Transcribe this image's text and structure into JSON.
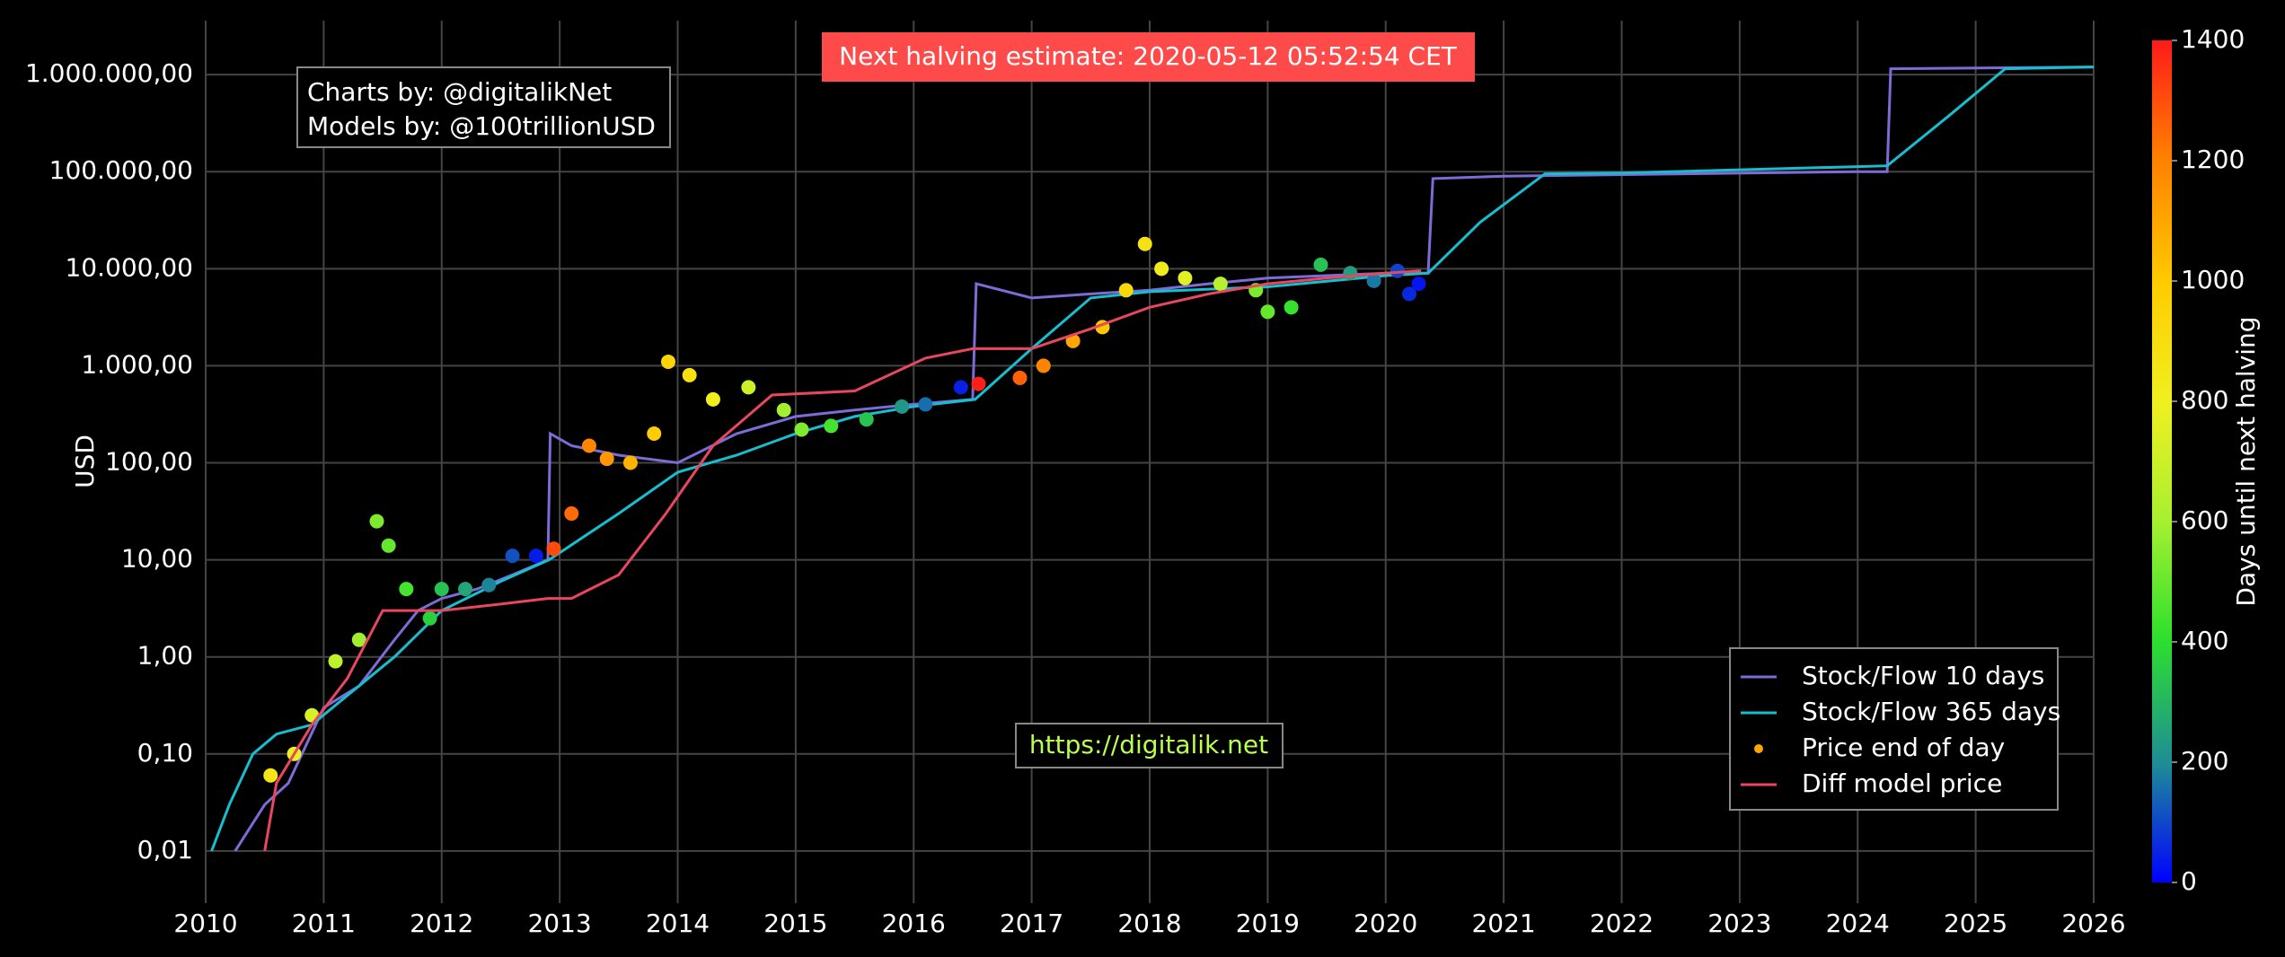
{
  "chart_data": {
    "type": "line",
    "y_label": "USD",
    "log_y": true,
    "grid": true,
    "xlim": [
      2010,
      2026
    ],
    "xticks": [
      2010,
      2011,
      2012,
      2013,
      2014,
      2015,
      2016,
      2017,
      2018,
      2019,
      2020,
      2021,
      2022,
      2023,
      2024,
      2025,
      2026
    ],
    "ylim": [
      0.0029,
      3600000
    ],
    "yticks": [
      {
        "value": 0.01,
        "label": "0,01"
      },
      {
        "value": 0.1,
        "label": "0,10"
      },
      {
        "value": 1,
        "label": "1,00"
      },
      {
        "value": 10,
        "label": "10,00"
      },
      {
        "value": 100,
        "label": "100,00"
      },
      {
        "value": 1000,
        "label": "1.000,00"
      },
      {
        "value": 10000,
        "label": "10.000,00"
      },
      {
        "value": 100000,
        "label": "100.000,00"
      },
      {
        "value": 1000000,
        "label": "1.000.000,00"
      }
    ],
    "legend_position": "bottom right",
    "series": [
      {
        "name": "Stock/Flow 10 days",
        "mode": "line",
        "color": "#7b6cd6",
        "x": [
          2010.25,
          2010.5,
          2010.7,
          2011.0,
          2011.3,
          2011.6,
          2011.8,
          2012.0,
          2012.3,
          2012.6,
          2012.9,
          2012.92,
          2013.1,
          2013.5,
          2014.0,
          2014.5,
          2015.0,
          2015.5,
          2016.0,
          2016.5,
          2016.53,
          2017.0,
          2017.5,
          2018.0,
          2018.5,
          2019.0,
          2019.5,
          2020.0,
          2020.36,
          2020.4,
          2021.0,
          2024.0,
          2024.25,
          2024.28,
          2026
        ],
        "values": [
          0.01,
          0.03,
          0.05,
          0.3,
          0.5,
          1.5,
          3,
          4,
          5,
          7,
          10,
          200,
          150,
          120,
          100,
          200,
          300,
          350,
          400,
          450,
          7000,
          5000,
          5500,
          6000,
          7000,
          8000,
          8500,
          9000,
          9000,
          85000,
          90000,
          100000,
          100000,
          1150000,
          1200000
        ]
      },
      {
        "name": "Stock/Flow 365 days",
        "mode": "line",
        "color": "#17becf",
        "x": [
          2010.05,
          2010.2,
          2010.4,
          2010.6,
          2010.9,
          2011.2,
          2011.6,
          2012.0,
          2012.5,
          2012.91,
          2013.5,
          2014.0,
          2014.5,
          2015.0,
          2015.5,
          2016.0,
          2016.52,
          2017.0,
          2017.5,
          2018.0,
          2019.0,
          2020.0,
          2020.36,
          2020.8,
          2021.35,
          2022.0,
          2024.25,
          2024.8,
          2025.25,
          2026
        ],
        "values": [
          0.01,
          0.03,
          0.1,
          0.16,
          0.2,
          0.4,
          1,
          3,
          6,
          10,
          30,
          80,
          120,
          200,
          300,
          380,
          450,
          1500,
          5000,
          5800,
          6500,
          8500,
          9000,
          30000,
          95000,
          97000,
          115000,
          400000,
          1150000,
          1200000
        ]
      },
      {
        "name": "Price end of day",
        "mode": "markers",
        "legend_color": "#ffa500",
        "x": [
          2010.55,
          2010.75,
          2010.9,
          2011.1,
          2011.3,
          2011.45,
          2011.55,
          2011.7,
          2011.9,
          2012.0,
          2012.2,
          2012.4,
          2012.6,
          2012.8,
          2012.95,
          2013.1,
          2013.25,
          2013.4,
          2013.6,
          2013.8,
          2013.92,
          2014.1,
          2014.3,
          2014.6,
          2014.9,
          2015.05,
          2015.3,
          2015.6,
          2015.9,
          2016.1,
          2016.4,
          2016.55,
          2016.9,
          2017.1,
          2017.35,
          2017.6,
          2017.8,
          2017.96,
          2018.1,
          2018.3,
          2018.6,
          2018.9,
          2019.0,
          2019.2,
          2019.45,
          2019.7,
          2019.9,
          2020.1,
          2020.2,
          2020.28
        ],
        "values": [
          0.06,
          0.1,
          0.25,
          0.9,
          1.5,
          25,
          14,
          5,
          2.5,
          5,
          5,
          5.5,
          11,
          11,
          13,
          30,
          150,
          110,
          100,
          200,
          1100,
          800,
          450,
          600,
          350,
          220,
          240,
          280,
          380,
          400,
          600,
          650,
          750,
          1000,
          1800,
          2500,
          6000,
          18000,
          10000,
          8000,
          7000,
          6000,
          3600,
          4000,
          11000,
          9000,
          7500,
          9500,
          5500,
          7000
        ],
        "colors": [
          861,
          788,
          734,
          661,
          588,
          533,
          496,
          442,
          369,
          332,
          259,
          186,
          113,
          40,
          1303,
          1248,
          1194,
          1139,
          1066,
          993,
          949,
          883,
          810,
          701,
          591,
          537,
          445,
          336,
          226,
          153,
          44,
          1391,
          1263,
          1190,
          1099,
          1007,
          934,
          876,
          825,
          752,
          642,
          533,
          496,
          423,
          332,
          241,
          168,
          95,
          58,
          29
        ]
      },
      {
        "name": "Diff model price",
        "mode": "line",
        "color": "#e8475f",
        "x": [
          2010.5,
          2010.6,
          2010.9,
          2011.2,
          2011.5,
          2012.0,
          2012.5,
          2012.9,
          2013.1,
          2013.5,
          2013.9,
          2014.3,
          2014.8,
          2015.5,
          2016.1,
          2016.5,
          2017.0,
          2017.5,
          2018.0,
          2018.5,
          2019.0,
          2019.5,
          2020.0,
          2020.3
        ],
        "values": [
          0.01,
          0.05,
          0.2,
          0.6,
          3,
          3,
          3.5,
          4,
          4,
          7,
          30,
          150,
          500,
          550,
          1200,
          1500,
          1500,
          2400,
          4000,
          5500,
          7000,
          8000,
          9000,
          9500
        ]
      }
    ],
    "colorbar": {
      "title": "Days until next halving",
      "lim": [
        0,
        1400
      ],
      "ticks": [
        0,
        200,
        400,
        600,
        800,
        1000,
        1200,
        1400
      ],
      "colorscale": [
        [
          0,
          "#0000ff"
        ],
        [
          0.14,
          "#1e8c96"
        ],
        [
          0.29,
          "#2de02d"
        ],
        [
          0.43,
          "#a8f030"
        ],
        [
          0.57,
          "#f0f020"
        ],
        [
          0.71,
          "#ffcc00"
        ],
        [
          0.86,
          "#ff8000"
        ],
        [
          1,
          "#ff1a1a"
        ]
      ]
    },
    "annotations": {
      "credits": [
        "Charts by: @digitalikNet",
        "Models by: @100trillionUSD"
      ],
      "halving": "Next halving estimate: 2020-05-12 05:52:54 CET",
      "website": "https://digitalik.net"
    }
  }
}
